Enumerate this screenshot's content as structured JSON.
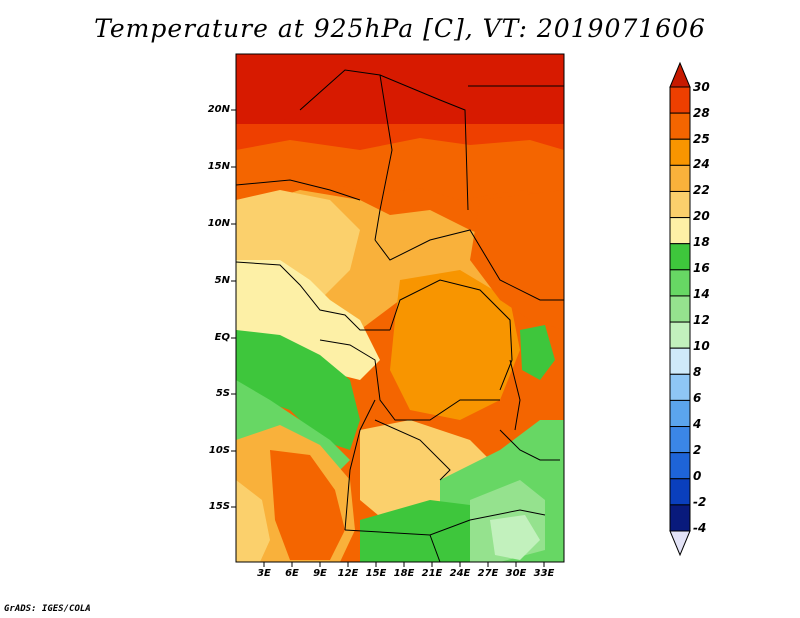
{
  "title": "Temperature at 925hPa [C], VT: 2019071606",
  "footer": "GrADS: IGES/COLA",
  "map": {
    "region": "Central and Southern Africa",
    "lat_labels": [
      "20N",
      "15N",
      "10N",
      "5N",
      "EQ",
      "5S",
      "10S",
      "15S"
    ],
    "lon_labels": [
      "3E",
      "6E",
      "9E",
      "12E",
      "15E",
      "18E",
      "21E",
      "24E",
      "27E",
      "30E",
      "33E"
    ],
    "lat_range": [
      -18.5,
      24.5
    ],
    "lon_range": [
      0,
      35
    ]
  },
  "colorbar": {
    "levels": [
      "30",
      "28",
      "25",
      "24",
      "22",
      "20",
      "18",
      "16",
      "14",
      "12",
      "10",
      "8",
      "6",
      "4",
      "2",
      "0",
      "-2",
      "-4"
    ],
    "colors": [
      "#d71a00",
      "#ee3f00",
      "#f46500",
      "#f89500",
      "#f9b13b",
      "#fbd06c",
      "#fdf0a6",
      "#3ec63c",
      "#67d764",
      "#95e28e",
      "#c2f1bd",
      "#cfeafa",
      "#8ec6f5",
      "#5ba5ed",
      "#3b86e6",
      "#1e64d8",
      "#0a3fbd",
      "#091a7c"
    ],
    "top_arrow_color": "#c71a00",
    "bottom_arrow_color": "#e3e3f7",
    "units": "C"
  }
}
